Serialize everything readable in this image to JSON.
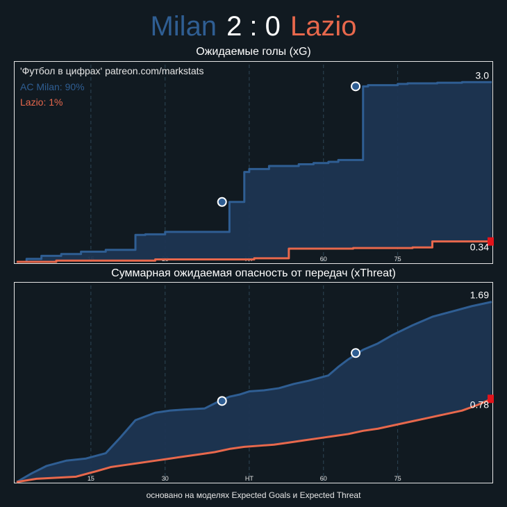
{
  "header": {
    "home_team": "Milan",
    "score": "2 : 0",
    "away_team": "Lazio"
  },
  "colors": {
    "home": "#2f5e93",
    "away": "#e8684c",
    "home_fill": "#1e3552",
    "background": "#111a21",
    "grid": "#2e4656",
    "panel_border": "#e6e6e6",
    "red_marker": "#e3141b"
  },
  "source_label": "'Футбол в цифрах' patreon.com/markstats",
  "win_probability": {
    "home": "AC Milan: 90%",
    "away": "Lazio: 1%"
  },
  "footer": "основано на моделях Expected Goals и Expected Threat",
  "chart_data": [
    {
      "type": "line",
      "title": "Ожидаемые голы (xG)",
      "xlim": [
        0,
        96
      ],
      "ylim": [
        0,
        3.05
      ],
      "x_ticks": [
        15,
        30,
        "HT",
        60,
        75
      ],
      "x_tick_positions": [
        15,
        30,
        47,
        62,
        77
      ],
      "grid": "vertical dashed",
      "end_labels": {
        "home": "3.0",
        "away": "0.34"
      },
      "series": [
        {
          "name": "AC Milan",
          "step": true,
          "x": [
            0,
            2,
            5,
            9,
            13,
            18,
            24,
            26,
            30,
            35,
            43,
            46,
            47,
            51,
            57,
            60,
            63,
            65,
            70,
            71,
            77,
            79,
            85,
            90,
            96
          ],
          "y": [
            0,
            0.05,
            0.1,
            0.13,
            0.17,
            0.2,
            0.45,
            0.46,
            0.5,
            0.5,
            1.0,
            1.5,
            1.55,
            1.6,
            1.63,
            1.65,
            1.67,
            1.7,
            2.93,
            2.95,
            2.97,
            2.98,
            2.99,
            3.0,
            3.0
          ]
        },
        {
          "name": "Lazio",
          "step": true,
          "x": [
            0,
            8,
            28,
            48,
            55,
            68,
            80,
            84,
            90,
            96
          ],
          "y": [
            0,
            0.02,
            0.04,
            0.06,
            0.22,
            0.23,
            0.24,
            0.34,
            0.34,
            0.34
          ]
        }
      ],
      "markers": {
        "goals": [
          {
            "x": 41.5,
            "y": 1.0
          },
          {
            "x": 68.5,
            "y": 2.93
          }
        ],
        "red_card": {
          "x": 96,
          "y": 0.34
        }
      }
    },
    {
      "type": "line",
      "title": "Суммарная ожидаемая опасность от передач (xThreat)",
      "xlim": [
        0,
        96
      ],
      "ylim": [
        0,
        1.72
      ],
      "x_ticks": [
        15,
        30,
        "HT",
        60,
        75
      ],
      "x_tick_positions": [
        15,
        30,
        47,
        62,
        77
      ],
      "grid": "vertical dashed",
      "end_labels": {
        "home": "1.69",
        "away": "0.78"
      },
      "series": [
        {
          "name": "AC Milan",
          "x": [
            0,
            3,
            6,
            10,
            14,
            18,
            21,
            24,
            28,
            31,
            34,
            38,
            41,
            43,
            45,
            47,
            50,
            53,
            56,
            59,
            63,
            65,
            67,
            70,
            73,
            76,
            80,
            84,
            88,
            92,
            96
          ],
          "y": [
            0.0,
            0.08,
            0.15,
            0.2,
            0.22,
            0.27,
            0.42,
            0.58,
            0.65,
            0.67,
            0.68,
            0.69,
            0.76,
            0.8,
            0.82,
            0.85,
            0.86,
            0.88,
            0.92,
            0.95,
            1.0,
            1.08,
            1.15,
            1.24,
            1.3,
            1.38,
            1.47,
            1.55,
            1.6,
            1.65,
            1.69
          ]
        },
        {
          "name": "Lazio",
          "x": [
            0,
            4,
            8,
            12,
            16,
            19,
            22,
            25,
            28,
            31,
            34,
            37,
            40,
            43,
            46,
            49,
            52,
            55,
            58,
            61,
            64,
            67,
            70,
            73,
            76,
            80,
            83,
            86,
            90,
            93,
            96
          ],
          "y": [
            0.0,
            0.03,
            0.04,
            0.05,
            0.1,
            0.14,
            0.16,
            0.18,
            0.2,
            0.22,
            0.24,
            0.26,
            0.28,
            0.31,
            0.33,
            0.34,
            0.35,
            0.37,
            0.39,
            0.41,
            0.43,
            0.45,
            0.48,
            0.5,
            0.53,
            0.57,
            0.6,
            0.63,
            0.67,
            0.72,
            0.78
          ]
        }
      ],
      "markers": {
        "goals": [
          {
            "x": 41.5,
            "y": 0.76
          },
          {
            "x": 68.5,
            "y": 1.21
          }
        ],
        "red_card": {
          "x": 96,
          "y": 0.78
        }
      }
    }
  ]
}
